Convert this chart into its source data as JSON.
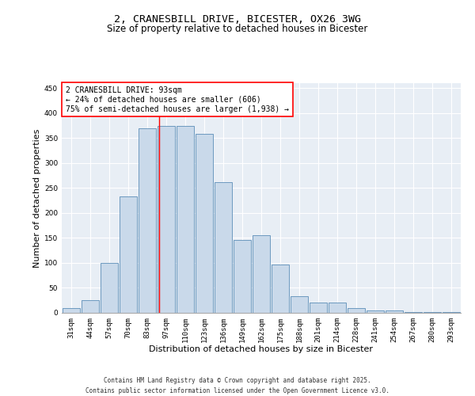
{
  "title_line1": "2, CRANESBILL DRIVE, BICESTER, OX26 3WG",
  "title_line2": "Size of property relative to detached houses in Bicester",
  "xlabel": "Distribution of detached houses by size in Bicester",
  "ylabel": "Number of detached properties",
  "bar_labels": [
    "31sqm",
    "44sqm",
    "57sqm",
    "70sqm",
    "83sqm",
    "97sqm",
    "110sqm",
    "123sqm",
    "136sqm",
    "149sqm",
    "162sqm",
    "175sqm",
    "188sqm",
    "201sqm",
    "214sqm",
    "228sqm",
    "241sqm",
    "254sqm",
    "267sqm",
    "280sqm",
    "293sqm"
  ],
  "bar_values": [
    10,
    26,
    100,
    233,
    370,
    375,
    375,
    358,
    262,
    146,
    155,
    97,
    33,
    20,
    20,
    10,
    4,
    4,
    2,
    1,
    2
  ],
  "bar_color": "#c9d9ea",
  "bar_edge_color": "#5b8db8",
  "background_color": "#e8eef5",
  "grid_color": "#ffffff",
  "annotation_text": "2 CRANESBILL DRIVE: 93sqm\n← 24% of detached houses are smaller (606)\n75% of semi-detached houses are larger (1,938) →",
  "vline_x_index": 4.62,
  "vline_color": "red",
  "annotation_box_edge_color": "red",
  "ylim": [
    0,
    460
  ],
  "yticks": [
    0,
    50,
    100,
    150,
    200,
    250,
    300,
    350,
    400,
    450
  ],
  "footer_text": "Contains HM Land Registry data © Crown copyright and database right 2025.\nContains public sector information licensed under the Open Government Licence v3.0.",
  "title_fontsize": 9.5,
  "subtitle_fontsize": 8.5,
  "axis_label_fontsize": 8,
  "tick_fontsize": 6.5,
  "annotation_fontsize": 7,
  "footer_fontsize": 5.5
}
